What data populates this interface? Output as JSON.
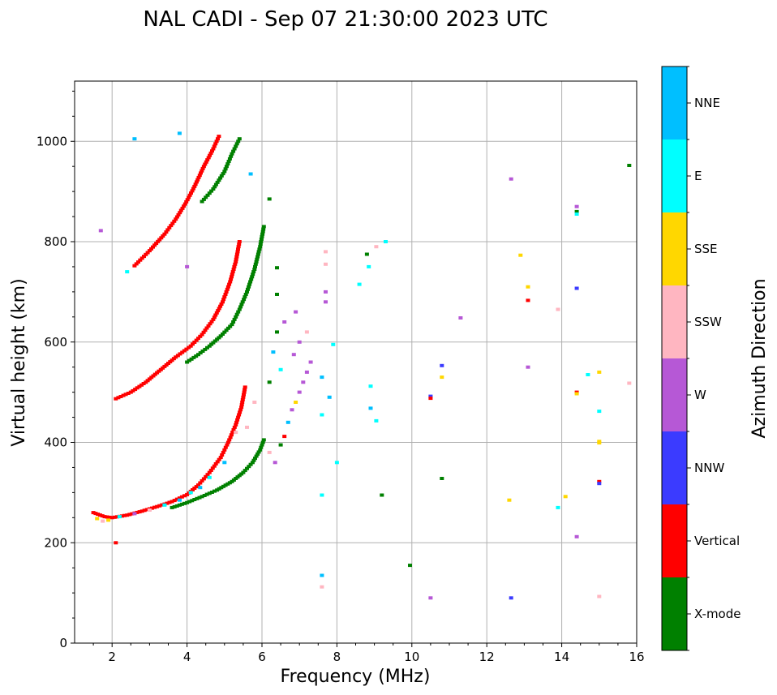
{
  "chart_data": {
    "type": "scatter",
    "title": "NAL CADI - Sep 07 21:30:00 2023 UTC",
    "xlabel": "Frequency (MHz)",
    "ylabel": "Virtual height (km)",
    "xlim": [
      1,
      16
    ],
    "ylim": [
      0,
      1120
    ],
    "xticks": [
      2,
      4,
      6,
      8,
      10,
      12,
      14,
      16
    ],
    "yticks": [
      0,
      200,
      400,
      600,
      800,
      1000
    ],
    "grid": true,
    "colorbar": {
      "title": "Azimuth Direction",
      "categories": [
        {
          "name": "X-mode",
          "color": "#008000"
        },
        {
          "name": "Vertical",
          "color": "#ff0000"
        },
        {
          "name": "NNW",
          "color": "#3b3bff"
        },
        {
          "name": "W",
          "color": "#b658d6"
        },
        {
          "name": "SSW",
          "color": "#ffb6c1"
        },
        {
          "name": "SSE",
          "color": "#ffd700"
        },
        {
          "name": "E",
          "color": "#00ffff"
        },
        {
          "name": "NNE",
          "color": "#00bfff"
        }
      ]
    },
    "traces": [
      {
        "name": "F-trace 1st hop O-mode",
        "category": "Vertical",
        "points": [
          [
            1.5,
            260
          ],
          [
            1.8,
            252
          ],
          [
            2.0,
            250
          ],
          [
            2.4,
            255
          ],
          [
            2.8,
            263
          ],
          [
            3.2,
            272
          ],
          [
            3.6,
            282
          ],
          [
            4.0,
            296
          ],
          [
            4.3,
            315
          ],
          [
            4.6,
            340
          ],
          [
            4.9,
            370
          ],
          [
            5.1,
            400
          ],
          [
            5.3,
            435
          ],
          [
            5.45,
            470
          ],
          [
            5.55,
            510
          ]
        ]
      },
      {
        "name": "F-trace 1st hop X-mode",
        "category": "X-mode",
        "points": [
          [
            3.6,
            270
          ],
          [
            4.0,
            280
          ],
          [
            4.4,
            292
          ],
          [
            4.8,
            305
          ],
          [
            5.2,
            322
          ],
          [
            5.5,
            340
          ],
          [
            5.75,
            360
          ],
          [
            5.95,
            385
          ],
          [
            6.05,
            405
          ]
        ]
      },
      {
        "name": "F-trace 2nd hop O-mode",
        "category": "Vertical",
        "points": [
          [
            2.1,
            487
          ],
          [
            2.5,
            500
          ],
          [
            2.9,
            520
          ],
          [
            3.3,
            545
          ],
          [
            3.7,
            570
          ],
          [
            4.1,
            592
          ],
          [
            4.4,
            615
          ],
          [
            4.7,
            645
          ],
          [
            4.95,
            680
          ],
          [
            5.15,
            720
          ],
          [
            5.3,
            760
          ],
          [
            5.4,
            800
          ]
        ]
      },
      {
        "name": "F-trace 2nd hop X-mode",
        "category": "X-mode",
        "points": [
          [
            4.0,
            560
          ],
          [
            4.3,
            575
          ],
          [
            4.6,
            592
          ],
          [
            4.9,
            612
          ],
          [
            5.2,
            635
          ],
          [
            5.4,
            665
          ],
          [
            5.6,
            700
          ],
          [
            5.8,
            745
          ],
          [
            5.95,
            790
          ],
          [
            6.05,
            830
          ]
        ]
      },
      {
        "name": "F-trace 3rd hop O-mode",
        "category": "Vertical",
        "points": [
          [
            2.6,
            752
          ],
          [
            3.0,
            782
          ],
          [
            3.4,
            815
          ],
          [
            3.7,
            845
          ],
          [
            3.95,
            875
          ],
          [
            4.2,
            910
          ],
          [
            4.45,
            950
          ],
          [
            4.7,
            985
          ],
          [
            4.85,
            1010
          ]
        ]
      },
      {
        "name": "F-trace 3rd hop X-mode",
        "category": "X-mode",
        "points": [
          [
            4.4,
            880
          ],
          [
            4.7,
            905
          ],
          [
            5.0,
            940
          ],
          [
            5.2,
            975
          ],
          [
            5.4,
            1005
          ]
        ]
      }
    ],
    "points": [
      [
        1.6,
        248,
        "SSE"
      ],
      [
        1.75,
        243,
        "SSW"
      ],
      [
        1.9,
        245,
        "SSE"
      ],
      [
        2.2,
        252,
        "E"
      ],
      [
        2.6,
        258,
        "W"
      ],
      [
        3.0,
        265,
        "SSW"
      ],
      [
        3.4,
        275,
        "E"
      ],
      [
        3.8,
        285,
        "NNE"
      ],
      [
        4.1,
        300,
        "E"
      ],
      [
        4.35,
        310,
        "NNE"
      ],
      [
        4.6,
        330,
        "E"
      ],
      [
        5.0,
        360,
        "NNE"
      ],
      [
        5.3,
        420,
        "SSW"
      ],
      [
        5.6,
        430,
        "SSW"
      ],
      [
        5.8,
        480,
        "SSW"
      ],
      [
        6.2,
        380,
        "SSW"
      ],
      [
        6.35,
        360,
        "W"
      ],
      [
        6.5,
        395,
        "X-mode"
      ],
      [
        6.6,
        412,
        "Vertical"
      ],
      [
        6.7,
        440,
        "NNE"
      ],
      [
        6.8,
        465,
        "W"
      ],
      [
        6.9,
        480,
        "SSE"
      ],
      [
        7.0,
        500,
        "W"
      ],
      [
        7.1,
        520,
        "W"
      ],
      [
        7.2,
        540,
        "W"
      ],
      [
        7.3,
        560,
        "W"
      ],
      [
        6.85,
        575,
        "W"
      ],
      [
        7.0,
        600,
        "W"
      ],
      [
        7.2,
        620,
        "SSW"
      ],
      [
        6.6,
        640,
        "W"
      ],
      [
        6.9,
        660,
        "W"
      ],
      [
        6.4,
        620,
        "X-mode"
      ],
      [
        6.3,
        580,
        "NNE"
      ],
      [
        6.5,
        545,
        "E"
      ],
      [
        6.2,
        520,
        "X-mode"
      ],
      [
        7.7,
        780,
        "SSW"
      ],
      [
        7.7,
        755,
        "SSW"
      ],
      [
        7.7,
        700,
        "W"
      ],
      [
        7.7,
        680,
        "W"
      ],
      [
        7.9,
        595,
        "E"
      ],
      [
        7.6,
        530,
        "NNE"
      ],
      [
        7.8,
        490,
        "NNE"
      ],
      [
        7.6,
        455,
        "E"
      ],
      [
        8.0,
        360,
        "E"
      ],
      [
        7.6,
        295,
        "E"
      ],
      [
        7.6,
        135,
        "NNE"
      ],
      [
        7.6,
        112,
        "SSW"
      ],
      [
        8.6,
        715,
        "E"
      ],
      [
        8.8,
        775,
        "X-mode"
      ],
      [
        8.85,
        750,
        "E"
      ],
      [
        9.05,
        790,
        "SSW"
      ],
      [
        9.3,
        800,
        "E"
      ],
      [
        8.9,
        512,
        "E"
      ],
      [
        8.9,
        468,
        "NNE"
      ],
      [
        9.05,
        443,
        "E"
      ],
      [
        9.2,
        295,
        "X-mode"
      ],
      [
        9.95,
        155,
        "X-mode"
      ],
      [
        10.5,
        492,
        "NNW"
      ],
      [
        10.5,
        488,
        "Vertical"
      ],
      [
        10.8,
        553,
        "NNW"
      ],
      [
        10.8,
        530,
        "SSE"
      ],
      [
        10.8,
        328,
        "X-mode"
      ],
      [
        10.5,
        90,
        "W"
      ],
      [
        11.3,
        648,
        "W"
      ],
      [
        12.65,
        925,
        "W"
      ],
      [
        12.9,
        773,
        "SSE"
      ],
      [
        13.1,
        710,
        "SSE"
      ],
      [
        13.1,
        683,
        "Vertical"
      ],
      [
        13.1,
        550,
        "W"
      ],
      [
        12.6,
        285,
        "SSE"
      ],
      [
        12.65,
        90,
        "NNW"
      ],
      [
        13.9,
        665,
        "SSW"
      ],
      [
        13.9,
        270,
        "E"
      ],
      [
        14.1,
        292,
        "SSE"
      ],
      [
        14.4,
        870,
        "W"
      ],
      [
        14.4,
        860,
        "X-mode"
      ],
      [
        14.4,
        855,
        "E"
      ],
      [
        14.4,
        707,
        "NNW"
      ],
      [
        14.4,
        500,
        "Vertical"
      ],
      [
        14.4,
        497,
        "SSE"
      ],
      [
        14.4,
        212,
        "W"
      ],
      [
        14.7,
        535,
        "E"
      ],
      [
        15.0,
        540,
        "SSE"
      ],
      [
        15.0,
        462,
        "E"
      ],
      [
        15.0,
        402,
        "SSE"
      ],
      [
        15.0,
        399,
        "SSE"
      ],
      [
        15.0,
        322,
        "Vertical"
      ],
      [
        15.0,
        318,
        "NNW"
      ],
      [
        15.0,
        93,
        "SSW"
      ],
      [
        15.8,
        952,
        "X-mode"
      ],
      [
        15.8,
        518,
        "SSW"
      ],
      [
        1.7,
        822,
        "W"
      ],
      [
        2.4,
        740,
        "E"
      ],
      [
        2.6,
        1005,
        "NNE"
      ],
      [
        3.8,
        1016,
        "NNE"
      ],
      [
        4.0,
        750,
        "W"
      ],
      [
        2.1,
        200,
        "Vertical"
      ],
      [
        5.7,
        935,
        "NNE"
      ],
      [
        6.2,
        885,
        "X-mode"
      ],
      [
        6.4,
        748,
        "X-mode"
      ],
      [
        6.4,
        695,
        "X-mode"
      ]
    ]
  }
}
